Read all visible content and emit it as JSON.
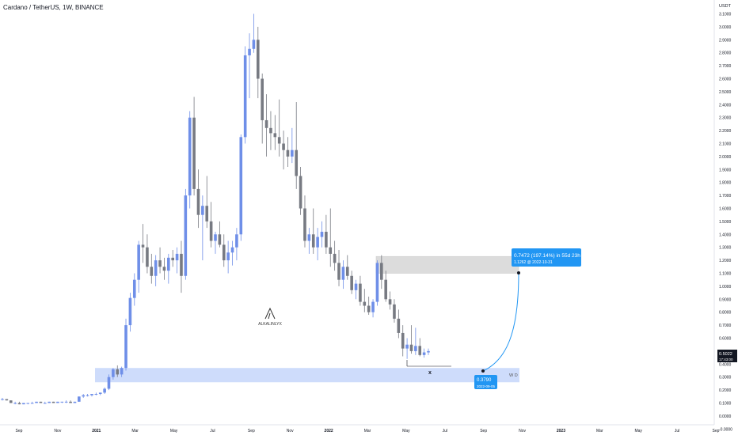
{
  "header": {
    "title": "Cardano / TetherUS, 1W, BINANCE"
  },
  "price_axis": {
    "currency": "USDT"
  },
  "chart_data": {
    "type": "candlestick",
    "title": "Cardano / TetherUS, 1W, BINANCE",
    "y_unit": "USDT",
    "y_ticks": [
      "3.1000",
      "3.0000",
      "2.9000",
      "2.8000",
      "2.7000",
      "2.6000",
      "2.5000",
      "2.4000",
      "2.3000",
      "2.2000",
      "2.1000",
      "2.0000",
      "1.9000",
      "1.8000",
      "1.7000",
      "1.6000",
      "1.5000",
      "1.4000",
      "1.3000",
      "1.2000",
      "1.1000",
      "1.0000",
      "0.9000",
      "0.8000",
      "0.7000",
      "0.6000",
      "0.5000",
      "0.4000",
      "0.3000",
      "0.2000",
      "0.1000",
      "0.0000",
      "-0.0000"
    ],
    "x_ticks": [
      "Sep",
      "Nov",
      "2021",
      "Mar",
      "May",
      "Jul",
      "Sep",
      "Nov",
      "2022",
      "Mar",
      "May",
      "Jul",
      "Sep",
      "Nov",
      "2023",
      "Mar",
      "May",
      "Jul",
      "Sep"
    ],
    "last_price": {
      "value": "0.5022",
      "countdown": "17:43:00"
    },
    "candles": [
      [
        0.13,
        0.14,
        0.12,
        0.13
      ],
      [
        0.13,
        0.13,
        0.12,
        0.12
      ],
      [
        0.12,
        0.12,
        0.1,
        0.1
      ],
      [
        0.1,
        0.11,
        0.09,
        0.1
      ],
      [
        0.1,
        0.11,
        0.09,
        0.09
      ],
      [
        0.09,
        0.1,
        0.09,
        0.1
      ],
      [
        0.1,
        0.1,
        0.09,
        0.1
      ],
      [
        0.1,
        0.11,
        0.1,
        0.1
      ],
      [
        0.1,
        0.11,
        0.1,
        0.11
      ],
      [
        0.11,
        0.11,
        0.1,
        0.1
      ],
      [
        0.1,
        0.11,
        0.1,
        0.1
      ],
      [
        0.1,
        0.11,
        0.1,
        0.11
      ],
      [
        0.11,
        0.11,
        0.1,
        0.1
      ],
      [
        0.1,
        0.11,
        0.1,
        0.11
      ],
      [
        0.11,
        0.11,
        0.1,
        0.11
      ],
      [
        0.11,
        0.12,
        0.1,
        0.11
      ],
      [
        0.11,
        0.12,
        0.1,
        0.1
      ],
      [
        0.1,
        0.11,
        0.1,
        0.11
      ],
      [
        0.11,
        0.15,
        0.11,
        0.15
      ],
      [
        0.15,
        0.17,
        0.14,
        0.16
      ],
      [
        0.16,
        0.17,
        0.15,
        0.16
      ],
      [
        0.16,
        0.17,
        0.15,
        0.17
      ],
      [
        0.17,
        0.18,
        0.16,
        0.17
      ],
      [
        0.17,
        0.18,
        0.16,
        0.18
      ],
      [
        0.18,
        0.22,
        0.17,
        0.21
      ],
      [
        0.21,
        0.32,
        0.2,
        0.3
      ],
      [
        0.3,
        0.37,
        0.28,
        0.36
      ],
      [
        0.36,
        0.39,
        0.3,
        0.32
      ],
      [
        0.32,
        0.38,
        0.3,
        0.37
      ],
      [
        0.37,
        0.75,
        0.35,
        0.7
      ],
      [
        0.7,
        0.95,
        0.65,
        0.91
      ],
      [
        0.91,
        1.1,
        0.85,
        1.05
      ],
      [
        1.05,
        1.35,
        0.95,
        1.32
      ],
      [
        1.32,
        1.48,
        1.18,
        1.3
      ],
      [
        1.3,
        1.4,
        1.1,
        1.15
      ],
      [
        1.15,
        1.25,
        1.02,
        1.08
      ],
      [
        1.08,
        1.24,
        1.0,
        1.2
      ],
      [
        1.2,
        1.3,
        1.1,
        1.15
      ],
      [
        1.15,
        1.22,
        1.05,
        1.12
      ],
      [
        1.12,
        1.25,
        1.02,
        1.22
      ],
      [
        1.22,
        1.28,
        1.15,
        1.2
      ],
      [
        1.2,
        1.3,
        1.1,
        1.25
      ],
      [
        1.25,
        1.35,
        0.95,
        1.08
      ],
      [
        1.08,
        1.75,
        1.05,
        1.7
      ],
      [
        1.7,
        2.35,
        1.6,
        2.3
      ],
      [
        2.3,
        2.46,
        1.7,
        1.75
      ],
      [
        1.75,
        1.9,
        1.45,
        1.55
      ],
      [
        1.55,
        1.7,
        1.2,
        1.62
      ],
      [
        1.62,
        1.85,
        1.45,
        1.5
      ],
      [
        1.5,
        1.65,
        1.3,
        1.35
      ],
      [
        1.35,
        1.42,
        1.25,
        1.4
      ],
      [
        1.4,
        1.5,
        1.3,
        1.32
      ],
      [
        1.32,
        1.4,
        1.15,
        1.2
      ],
      [
        1.2,
        1.35,
        1.1,
        1.26
      ],
      [
        1.26,
        1.35,
        1.16,
        1.3
      ],
      [
        1.3,
        1.45,
        1.2,
        1.4
      ],
      [
        1.4,
        2.17,
        1.35,
        2.15
      ],
      [
        2.15,
        2.85,
        2.1,
        2.78
      ],
      [
        2.78,
        2.95,
        2.45,
        2.83
      ],
      [
        2.83,
        3.1,
        2.8,
        2.9
      ],
      [
        2.9,
        3.0,
        2.45,
        2.6
      ],
      [
        2.6,
        2.64,
        2.1,
        2.28
      ],
      [
        2.28,
        2.48,
        2.0,
        2.22
      ],
      [
        2.22,
        2.35,
        2.05,
        2.18
      ],
      [
        2.18,
        2.32,
        2.05,
        2.15
      ],
      [
        2.15,
        2.44,
        2.0,
        2.1
      ],
      [
        2.1,
        2.2,
        1.9,
        2.05
      ],
      [
        2.05,
        2.15,
        1.92,
        2.0
      ],
      [
        2.0,
        2.22,
        1.95,
        2.05
      ],
      [
        2.05,
        2.42,
        1.75,
        1.85
      ],
      [
        1.85,
        1.92,
        1.55,
        1.6
      ],
      [
        1.6,
        1.7,
        1.3,
        1.35
      ],
      [
        1.35,
        1.45,
        1.25,
        1.4
      ],
      [
        1.4,
        1.6,
        1.25,
        1.3
      ],
      [
        1.3,
        1.45,
        1.2,
        1.38
      ],
      [
        1.38,
        1.5,
        1.3,
        1.42
      ],
      [
        1.42,
        1.55,
        1.25,
        1.3
      ],
      [
        1.3,
        1.6,
        1.15,
        1.25
      ],
      [
        1.25,
        1.35,
        1.12,
        1.18
      ],
      [
        1.18,
        1.28,
        1.0,
        1.05
      ],
      [
        1.05,
        1.2,
        0.98,
        1.15
      ],
      [
        1.15,
        1.24,
        1.05,
        1.08
      ],
      [
        1.08,
        1.12,
        0.94,
        0.97
      ],
      [
        0.97,
        1.05,
        0.9,
        1.02
      ],
      [
        1.02,
        1.08,
        0.85,
        0.88
      ],
      [
        0.88,
        0.98,
        0.8,
        0.85
      ],
      [
        0.85,
        0.92,
        0.78,
        0.8
      ],
      [
        0.8,
        0.9,
        0.76,
        0.88
      ],
      [
        0.88,
        1.2,
        0.85,
        1.18
      ],
      [
        1.18,
        1.24,
        0.98,
        1.05
      ],
      [
        1.05,
        1.12,
        0.88,
        0.9
      ],
      [
        0.9,
        0.96,
        0.82,
        0.86
      ],
      [
        0.86,
        0.9,
        0.72,
        0.75
      ],
      [
        0.75,
        0.82,
        0.6,
        0.64
      ],
      [
        0.64,
        0.7,
        0.46,
        0.52
      ],
      [
        0.52,
        0.6,
        0.44,
        0.55
      ],
      [
        0.55,
        0.7,
        0.48,
        0.5
      ],
      [
        0.5,
        0.68,
        0.47,
        0.54
      ],
      [
        0.54,
        0.6,
        0.46,
        0.47
      ],
      [
        0.47,
        0.52,
        0.45,
        0.49
      ],
      [
        0.49,
        0.52,
        0.47,
        0.5
      ]
    ],
    "annotations": {
      "target_zone": {
        "from": 1.1,
        "to": 1.23
      },
      "support_zone": {
        "from": 0.26,
        "to": 0.37,
        "label": "W D"
      },
      "target_label": {
        "line1": "0.7472 (197.14%) in 55d 23h",
        "line2": "1.1262 @ 2022-10-31"
      },
      "start_label": {
        "price": "0.3790",
        "date": "2022-09-05"
      },
      "low_marker": "x",
      "watermark": "ALKALINLYX"
    },
    "colors": {
      "up": "#6f8fe8",
      "down": "#777a82",
      "label_bg": "#2196f3",
      "support_zone": "#c9d8fb",
      "target_zone": "#dcdcdc",
      "last_price_bg": "#131722"
    }
  }
}
